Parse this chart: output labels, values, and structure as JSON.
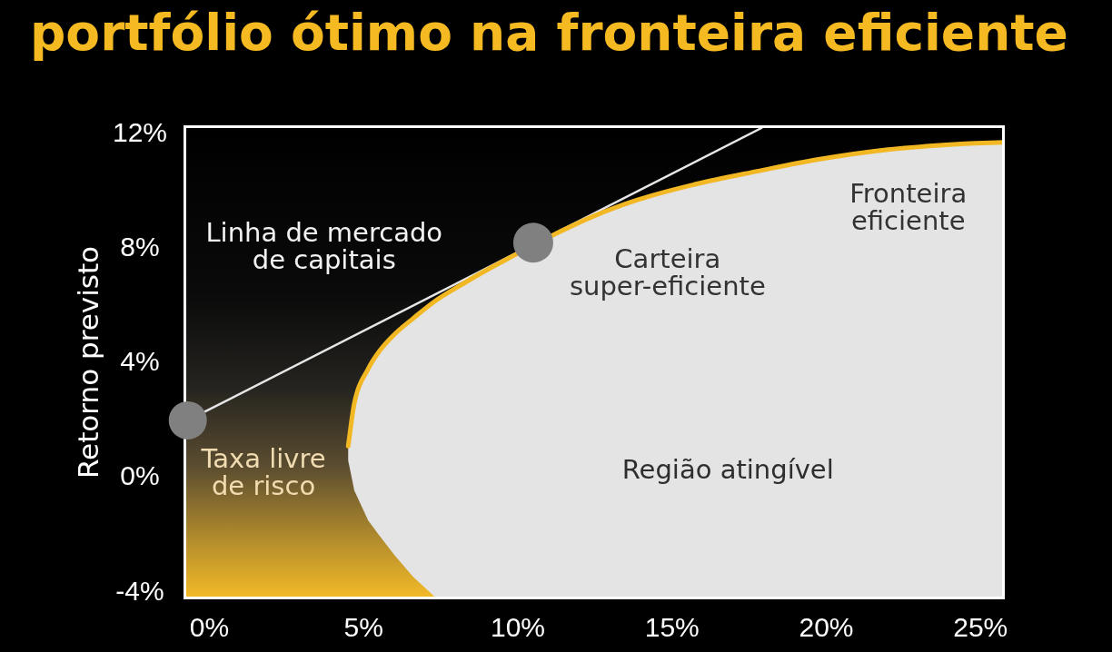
{
  "chart_data": {
    "type": "line",
    "title": "portfólio ótimo na fronteira eficiente",
    "ylabel": "Retorno previsto",
    "xlim": [
      -0.75,
      25.7
    ],
    "xticks": [
      {
        "value": 0,
        "label": "0%"
      },
      {
        "value": 5,
        "label": "5%"
      },
      {
        "value": 10,
        "label": "10%"
      },
      {
        "value": 15,
        "label": "15%"
      },
      {
        "value": 20,
        "label": "20%"
      },
      {
        "value": 25,
        "label": "25%"
      }
    ],
    "ylim": [
      -4.15,
      12.2
    ],
    "yticks": [
      {
        "value": -4,
        "label": "-4%"
      },
      {
        "value": 0,
        "label": "0%"
      },
      {
        "value": 4,
        "label": "4%"
      },
      {
        "value": 8,
        "label": "8%"
      },
      {
        "value": 12,
        "label": "12%"
      }
    ],
    "annotations": [
      "Região atingível"
    ],
    "series": [
      {
        "type": "scatter",
        "name": "Taxa livre de risco",
        "color": "#808080",
        "marker": "circle",
        "x": [
          -0.7
        ],
        "values": [
          2.0
        ]
      },
      {
        "type": "scatter",
        "name": "Carteira super-eficiente",
        "color": "#808080",
        "marker": "circle",
        "x": [
          10.5
        ],
        "values": [
          8.2
        ]
      },
      {
        "type": "line",
        "name": "Fronteira eficiente",
        "color": "#f2b824",
        "x": [
          4.5,
          4.7,
          5.15,
          5.5,
          6.0,
          6.6,
          7.3,
          8.2,
          8.75,
          9.6,
          11.4,
          12.4,
          13.9,
          15.8,
          17.8,
          19.7,
          22.0,
          24.5,
          25.7
        ],
        "values": [
          1.1,
          2.6,
          3.8,
          4.4,
          5.0,
          5.55,
          6.15,
          6.75,
          7.1,
          7.6,
          8.6,
          9.1,
          9.7,
          10.25,
          10.7,
          11.1,
          11.45,
          11.65,
          11.7
        ],
        "lower": [
          0.6,
          -0.45,
          -1.5,
          -2.0,
          -2.7,
          -3.45,
          -4.15,
          -4.15,
          -4.15,
          -4.15,
          -4.15,
          -4.15,
          -4.15,
          -4.15,
          -4.15,
          -4.15,
          -4.15,
          -4.15,
          -4.15
        ],
        "upper": [
          1.1,
          2.6,
          3.8,
          4.4,
          5.0,
          5.55,
          6.15,
          6.75,
          7.1,
          7.6,
          8.6,
          9.1,
          9.7,
          10.25,
          10.7,
          11.1,
          11.45,
          11.65,
          11.7
        ]
      },
      {
        "type": "line",
        "name": "Linha de mercado de capitais",
        "color": "#e6e6e6",
        "x": [
          -0.15,
          17.9
        ],
        "values": [
          2.3,
          12.2
        ]
      }
    ]
  }
}
